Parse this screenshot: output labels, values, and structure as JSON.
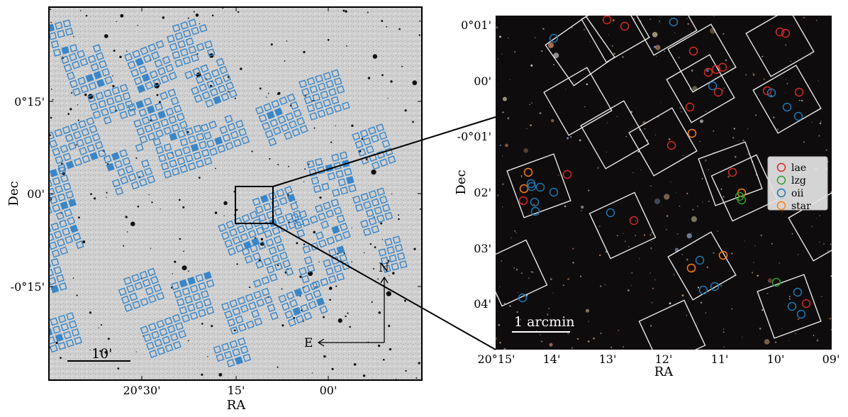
{
  "chart_data": [
    {
      "type": "scatter",
      "panel": "left",
      "description_visible": "wide-field greyscale sky image with blue square fiber-bundle footprints",
      "xlabel": "RA",
      "ylabel": "Dec",
      "x_ticks": [
        "20°30'",
        "15'",
        "00'"
      ],
      "y_ticks": [
        "0°15'",
        "00'",
        "-0°15'"
      ],
      "scale_bar_label": "10'",
      "compass": {
        "north": "N",
        "east": "E"
      },
      "marker_color": "#3a86c8",
      "image_background": "#c9c9c9"
    },
    {
      "type": "scatter",
      "panel": "right",
      "description_visible": "zoomed color sky image with white IFU squares and classified sources",
      "xlabel": "RA",
      "ylabel": "Dec",
      "x_ticks": [
        "20°15'",
        "14'",
        "13'",
        "12'",
        "11'",
        "10'",
        "09'"
      ],
      "y_ticks": [
        "0°01'",
        "00'",
        "-0°01'",
        "02'",
        "03'",
        "04'"
      ],
      "scale_bar_label": "1 arcmin",
      "legend": [
        {
          "name": "lae",
          "color": "#d62728"
        },
        {
          "name": "lzg",
          "color": "#2ca02c"
        },
        {
          "name": "oii",
          "color": "#1f77b4"
        },
        {
          "name": "star",
          "color": "#ff7f0e"
        }
      ],
      "legend_position": "right",
      "image_background": "#0d0c0c"
    }
  ]
}
